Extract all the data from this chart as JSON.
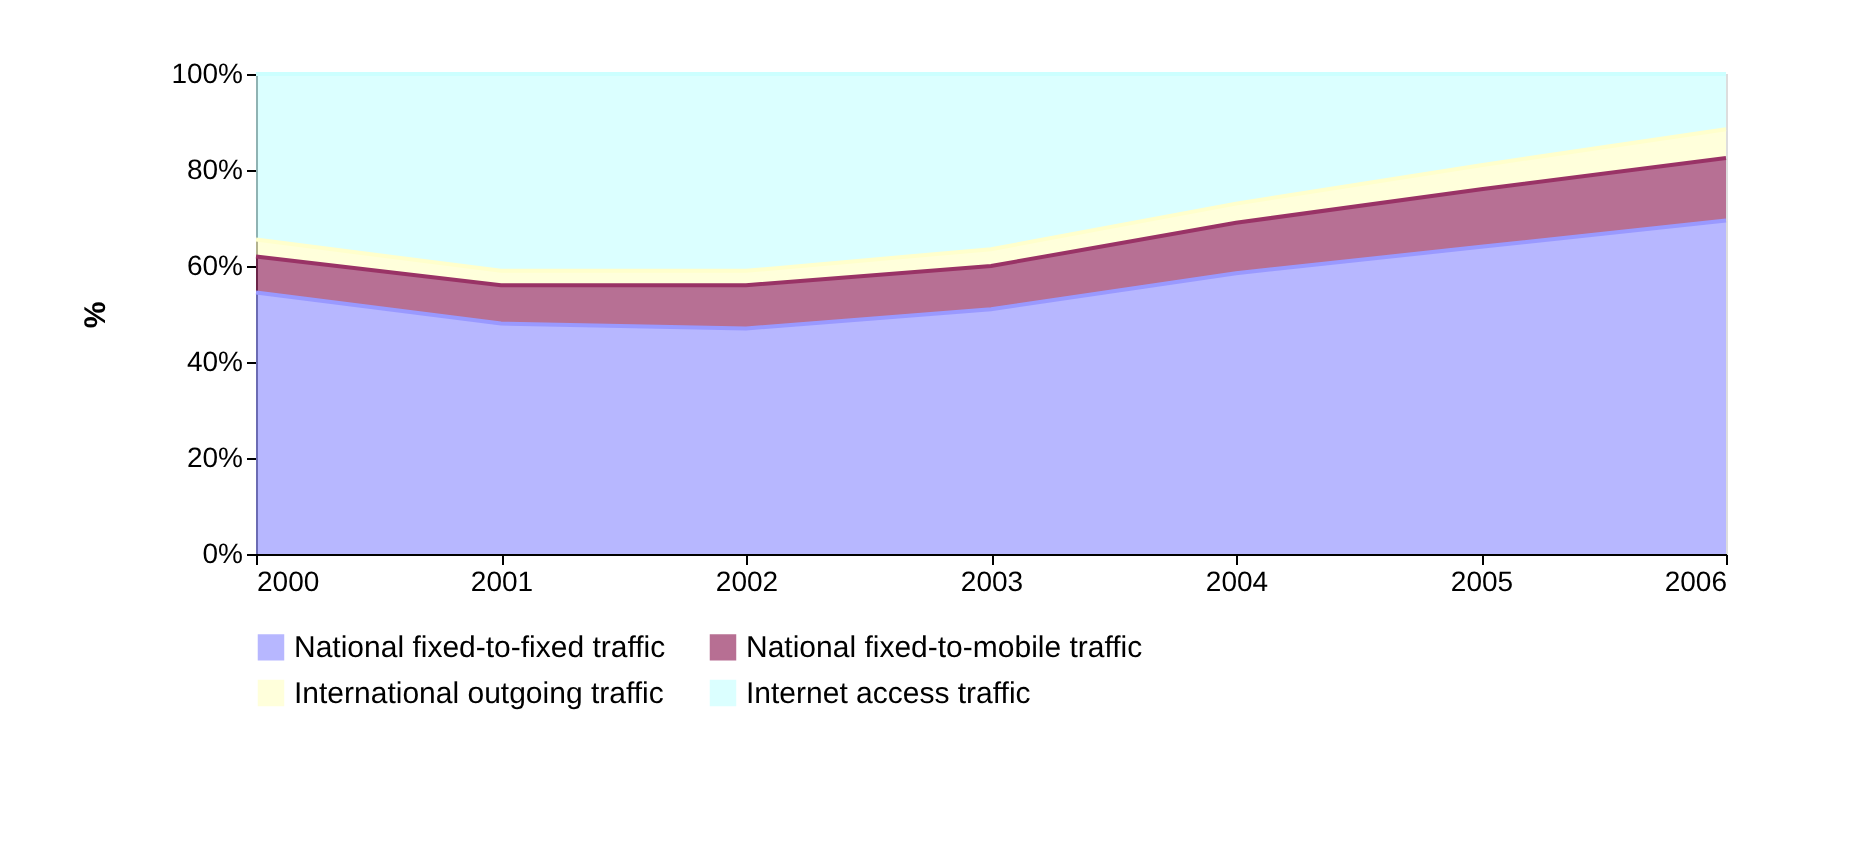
{
  "chart_data": {
    "type": "area",
    "stacked": true,
    "ylabel": "%",
    "x": [
      2000,
      2001,
      2002,
      2003,
      2004,
      2005,
      2006
    ],
    "xlim": [
      2000,
      2006
    ],
    "xticks": [
      2000,
      2001,
      2002,
      2003,
      2004,
      2005,
      2006
    ],
    "ylim": [
      0,
      100
    ],
    "yticks": [
      {
        "value": 0,
        "label": "0%"
      },
      {
        "value": 20,
        "label": "20%"
      },
      {
        "value": 40,
        "label": "40%"
      },
      {
        "value": 60,
        "label": "60%"
      },
      {
        "value": 80,
        "label": "80%"
      },
      {
        "value": 100,
        "label": "100%"
      }
    ],
    "grid": false,
    "legend": "bottom",
    "series": [
      {
        "name": "National fixed-to-fixed traffic",
        "color": "#9999ff",
        "values": [
          54.5,
          48,
          47,
          51,
          58.5,
          64,
          69.5
        ]
      },
      {
        "name": "National fixed-to-mobile traffic",
        "color": "#993366",
        "values": [
          7.5,
          8,
          9,
          9,
          10.5,
          12,
          13
        ]
      },
      {
        "name": "International outgoing traffic",
        "color": "#ffffcc",
        "values": [
          3.5,
          3,
          3,
          3.5,
          4,
          5,
          6
        ]
      },
      {
        "name": "Internet access traffic",
        "color": "#ccffff",
        "values": [
          34.5,
          41,
          41,
          36.5,
          27,
          19,
          11.5
        ]
      }
    ]
  }
}
